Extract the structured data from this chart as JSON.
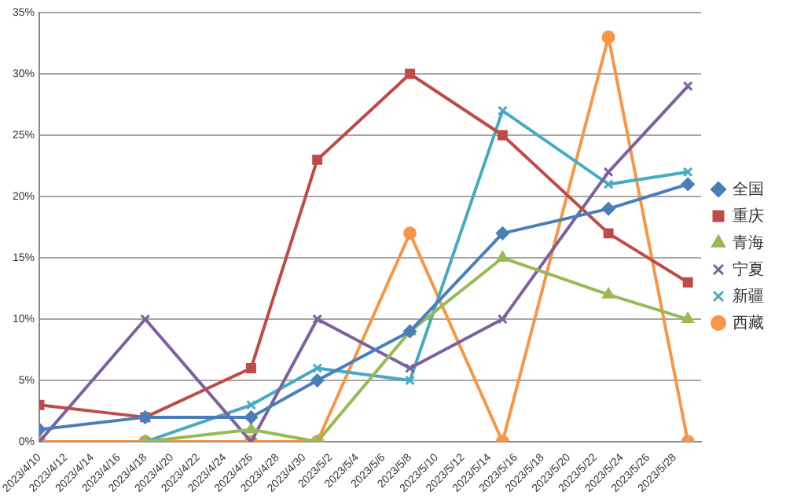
{
  "chart_data": {
    "type": "line",
    "x": [
      "2023-04-10",
      "2023-04-18",
      "2023-04-26",
      "2023-05-01",
      "2023-05-08",
      "2023-05-15",
      "2023-05-23",
      "2023-05-29"
    ],
    "xlim": [
      "2023-04-10",
      "2023-05-30"
    ],
    "xticks": [
      {
        "value": "2023-04-10",
        "label": "2023/4/10"
      },
      {
        "value": "2023-04-12",
        "label": "2023/4/12"
      },
      {
        "value": "2023-04-14",
        "label": "2023/4/14"
      },
      {
        "value": "2023-04-16",
        "label": "2023/4/16"
      },
      {
        "value": "2023-04-18",
        "label": "2023/4/18"
      },
      {
        "value": "2023-04-20",
        "label": "2023/4/20"
      },
      {
        "value": "2023-04-22",
        "label": "2023/4/22"
      },
      {
        "value": "2023-04-24",
        "label": "2023/4/24"
      },
      {
        "value": "2023-04-26",
        "label": "2023/4/26"
      },
      {
        "value": "2023-04-28",
        "label": "2023/4/28"
      },
      {
        "value": "2023-04-30",
        "label": "2023/4/30"
      },
      {
        "value": "2023-05-02",
        "label": "2023/5/2"
      },
      {
        "value": "2023-05-04",
        "label": "2023/5/4"
      },
      {
        "value": "2023-05-06",
        "label": "2023/5/6"
      },
      {
        "value": "2023-05-08",
        "label": "2023/5/8"
      },
      {
        "value": "2023-05-10",
        "label": "2023/5/10"
      },
      {
        "value": "2023-05-12",
        "label": "2023/5/12"
      },
      {
        "value": "2023-05-14",
        "label": "2023/5/14"
      },
      {
        "value": "2023-05-16",
        "label": "2023/5/16"
      },
      {
        "value": "2023-05-18",
        "label": "2023/5/18"
      },
      {
        "value": "2023-05-20",
        "label": "2023/5/20"
      },
      {
        "value": "2023-05-22",
        "label": "2023/5/22"
      },
      {
        "value": "2023-05-24",
        "label": "2023/5/24"
      },
      {
        "value": "2023-05-26",
        "label": "2023/5/26"
      },
      {
        "value": "2023-05-28",
        "label": "2023/5/28"
      }
    ],
    "ylim": [
      0,
      35
    ],
    "yticks": [
      {
        "value": 0,
        "label": "0%"
      },
      {
        "value": 5,
        "label": "5%"
      },
      {
        "value": 10,
        "label": "10%"
      },
      {
        "value": 15,
        "label": "15%"
      },
      {
        "value": 20,
        "label": "20%"
      },
      {
        "value": 25,
        "label": "25%"
      },
      {
        "value": 30,
        "label": "30%"
      },
      {
        "value": 35,
        "label": "35%"
      }
    ],
    "grid": "y",
    "legend": "right",
    "series": [
      {
        "name": "全国",
        "color": "#4a7ebb",
        "marker": "diamond",
        "values": [
          1,
          2,
          2,
          5,
          9,
          17,
          19,
          21
        ]
      },
      {
        "name": "重庆",
        "color": "#be4b48",
        "marker": "square",
        "values": [
          3,
          2,
          6,
          23,
          30,
          25,
          17,
          13
        ]
      },
      {
        "name": "青海",
        "color": "#98b954",
        "marker": "triangle",
        "values": [
          null,
          0,
          1,
          0,
          9,
          15,
          12,
          10
        ]
      },
      {
        "name": "宁夏",
        "color": "#7d60a0",
        "marker": "cross",
        "values": [
          0,
          10,
          0,
          10,
          6,
          10,
          22,
          29
        ]
      },
      {
        "name": "新疆",
        "color": "#46aac5",
        "marker": "cross",
        "values": [
          null,
          0,
          3,
          6,
          5,
          27,
          21,
          22
        ]
      },
      {
        "name": "西藏",
        "color": "#f79646",
        "marker": "circle",
        "values": [
          0,
          0,
          0,
          0,
          17,
          0,
          33,
          0
        ]
      }
    ]
  }
}
